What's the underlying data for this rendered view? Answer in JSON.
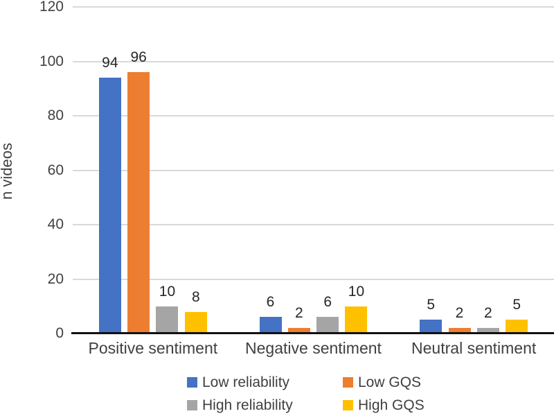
{
  "chart_data": {
    "type": "bar",
    "title": "",
    "xlabel": "",
    "ylabel": "n videos",
    "categories": [
      "Positive sentiment",
      "Negative sentiment",
      "Neutral sentiment"
    ],
    "series": [
      {
        "name": "Low reliability",
        "color": "#4472C4",
        "values": [
          94,
          6,
          5
        ]
      },
      {
        "name": "Low GQS",
        "color": "#ED7D31",
        "values": [
          96,
          2,
          2
        ]
      },
      {
        "name": "High reliability",
        "color": "#A5A5A5",
        "values": [
          10,
          6,
          2
        ]
      },
      {
        "name": "High GQS",
        "color": "#FFC000",
        "values": [
          8,
          10,
          5
        ]
      }
    ],
    "ylim": [
      0,
      120
    ],
    "yticks": [
      0,
      20,
      40,
      60,
      80,
      100,
      120
    ],
    "grid": true,
    "value_labels": true,
    "legend_position": "bottom"
  },
  "colors": {
    "background": "#FFFFFF",
    "gridline": "#D9D9D9",
    "axis_line": "#111111",
    "text": "#404040",
    "value_label_text": "#262626"
  }
}
